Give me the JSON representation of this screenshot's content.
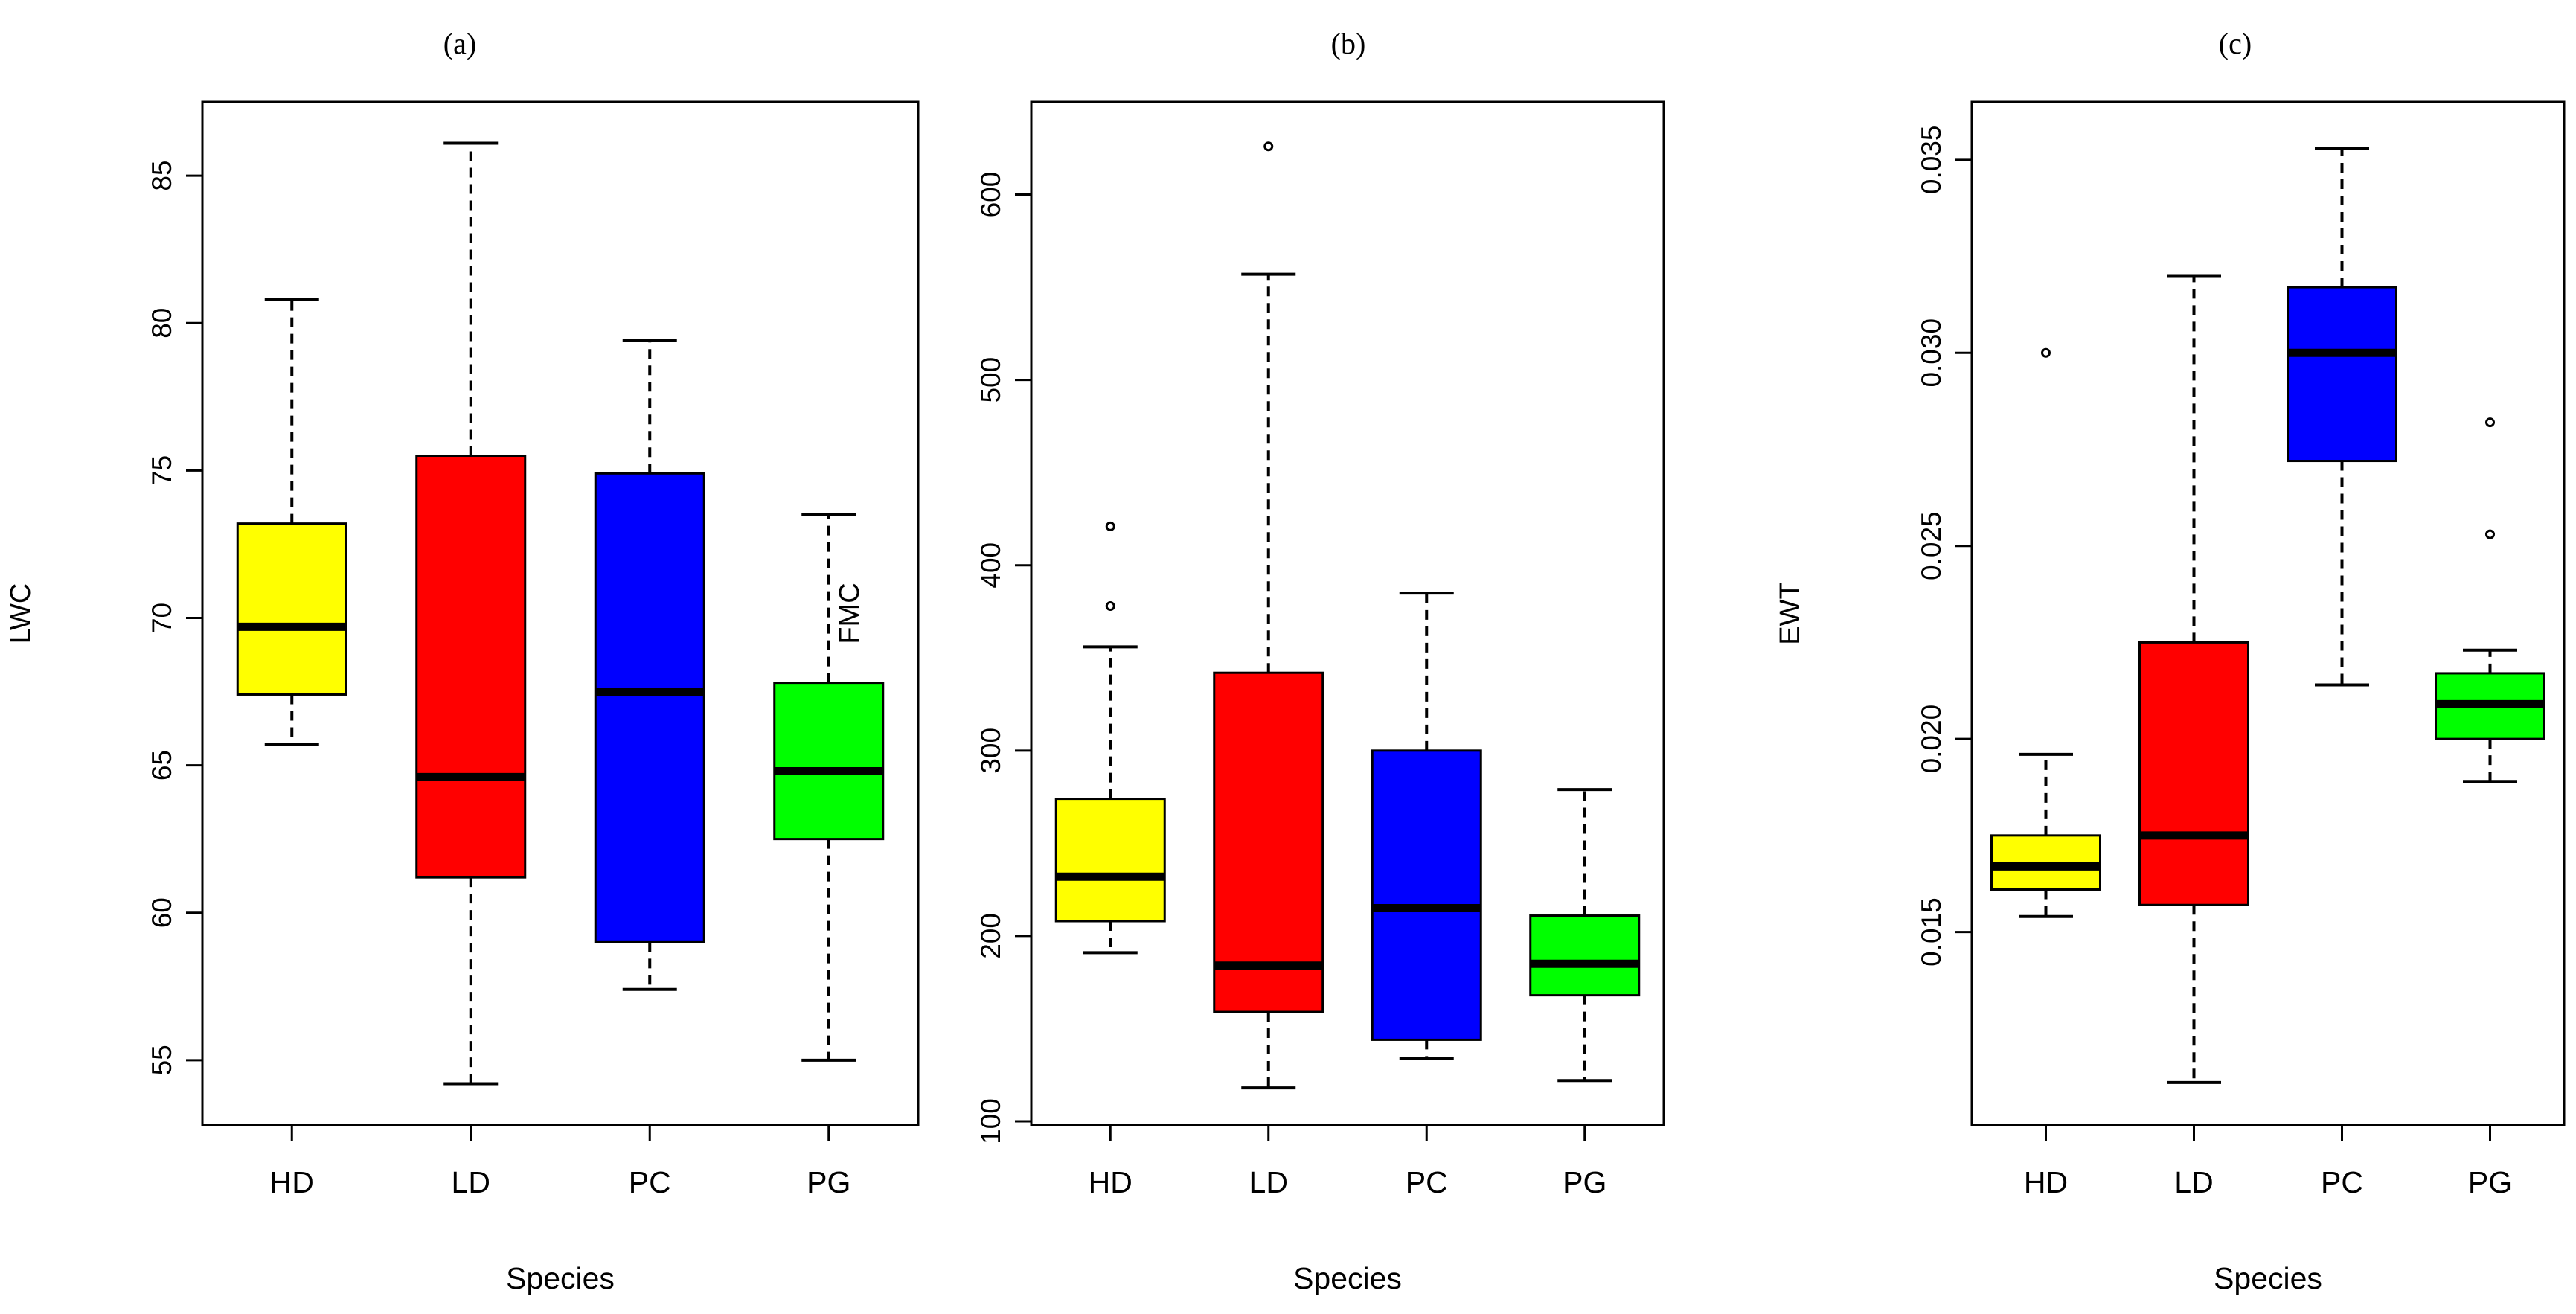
{
  "chart_data": [
    {
      "type": "boxplot",
      "panel_label": "(a)",
      "xlabel": "Species",
      "ylabel": "LWC",
      "ylim": [
        52.8,
        87.5
      ],
      "yticks": [
        55,
        60,
        65,
        70,
        75,
        80,
        85
      ],
      "tick_labels": [
        "55",
        "60",
        "65",
        "70",
        "75",
        "80",
        "85"
      ],
      "categories": [
        "HD",
        "LD",
        "PC",
        "PG"
      ],
      "boxes": [
        {
          "category": "HD",
          "color": "#ffff00",
          "whisker_low": 65.7,
          "q1": 67.4,
          "median": 69.7,
          "q3": 73.2,
          "whisker_high": 80.8,
          "outliers": []
        },
        {
          "category": "LD",
          "color": "#ff0000",
          "whisker_low": 54.2,
          "q1": 61.2,
          "median": 64.6,
          "q3": 75.5,
          "whisker_high": 86.1,
          "outliers": []
        },
        {
          "category": "PC",
          "color": "#0000ff",
          "whisker_low": 57.4,
          "q1": 59.0,
          "median": 67.5,
          "q3": 74.9,
          "whisker_high": 79.4,
          "outliers": []
        },
        {
          "category": "PG",
          "color": "#00ff00",
          "whisker_low": 55.0,
          "q1": 62.5,
          "median": 64.8,
          "q3": 67.8,
          "whisker_high": 73.5,
          "outliers": []
        }
      ]
    },
    {
      "type": "boxplot",
      "panel_label": "(b)",
      "xlabel": "Species",
      "ylabel": "FMC",
      "ylim": [
        98,
        650
      ],
      "yticks": [
        100,
        200,
        300,
        400,
        500,
        600
      ],
      "tick_labels": [
        "100",
        "200",
        "300",
        "400",
        "500",
        "600"
      ],
      "categories": [
        "HD",
        "LD",
        "PC",
        "PG"
      ],
      "boxes": [
        {
          "category": "HD",
          "color": "#ffff00",
          "whisker_low": 191,
          "q1": 208,
          "median": 232,
          "q3": 274,
          "whisker_high": 356,
          "outliers": [
            378,
            421
          ]
        },
        {
          "category": "LD",
          "color": "#ff0000",
          "whisker_low": 118,
          "q1": 159,
          "median": 184,
          "q3": 342,
          "whisker_high": 557,
          "outliers": [
            626
          ]
        },
        {
          "category": "PC",
          "color": "#0000ff",
          "whisker_low": 134,
          "q1": 144,
          "median": 215,
          "q3": 300,
          "whisker_high": 385,
          "outliers": []
        },
        {
          "category": "PG",
          "color": "#00ff00",
          "whisker_low": 122,
          "q1": 168,
          "median": 185,
          "q3": 211,
          "whisker_high": 279,
          "outliers": []
        }
      ]
    },
    {
      "type": "boxplot",
      "panel_label": "(c)",
      "xlabel": "Species",
      "ylabel": "EWT",
      "ylim": [
        0.01,
        0.0365
      ],
      "yticks": [
        0.015,
        0.02,
        0.025,
        0.03,
        0.035
      ],
      "tick_labels": [
        "0.015",
        "0.020",
        "0.025",
        "0.030",
        "0.035"
      ],
      "categories": [
        "HD",
        "LD",
        "PC",
        "PG"
      ],
      "boxes": [
        {
          "category": "HD",
          "color": "#ffff00",
          "whisker_low": 0.0154,
          "q1": 0.0161,
          "median": 0.0167,
          "q3": 0.0175,
          "whisker_high": 0.0196,
          "outliers": [
            0.03
          ]
        },
        {
          "category": "LD",
          "color": "#ff0000",
          "whisker_low": 0.0111,
          "q1": 0.0157,
          "median": 0.0175,
          "q3": 0.0225,
          "whisker_high": 0.032,
          "outliers": []
        },
        {
          "category": "PC",
          "color": "#0000ff",
          "whisker_low": 0.0214,
          "q1": 0.0272,
          "median": 0.03,
          "q3": 0.0317,
          "whisker_high": 0.0353,
          "outliers": []
        },
        {
          "category": "PG",
          "color": "#00ff00",
          "whisker_low": 0.0189,
          "q1": 0.02,
          "median": 0.0209,
          "q3": 0.0217,
          "whisker_high": 0.0223,
          "outliers": [
            0.0253,
            0.0282
          ]
        }
      ]
    }
  ]
}
